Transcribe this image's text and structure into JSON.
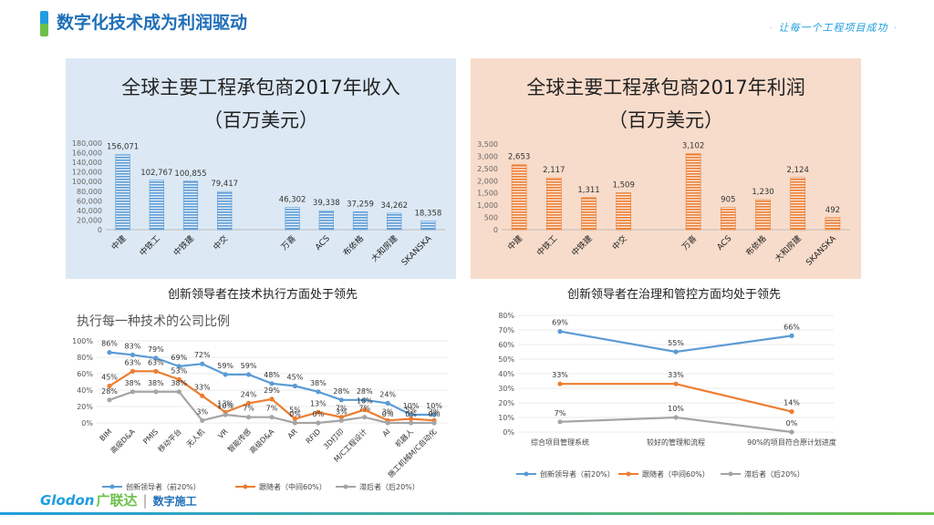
{
  "header": {
    "title": "数字化技术成为利润驱动",
    "slogan": "让每一个工程项目成功",
    "slogan_dot": "·"
  },
  "colors": {
    "blue": "#5b9bd5",
    "orange": "#ed7d31",
    "gray": "#a5a5a5",
    "brand_blue": "#1f9de0",
    "brand_green": "#6cc04a"
  },
  "footer": {
    "logo_text": "Glodon",
    "logo_cn": "广联达",
    "separator": "|",
    "tagline": "数字施工"
  },
  "captions": {
    "left": "创新领导者在技术执行方面处于领先",
    "right": "创新领导者在治理和管控方面均处于领先"
  },
  "chart_data": [
    {
      "id": "revenue",
      "type": "bar",
      "title_line1": "全球主要工程承包商2017年收入",
      "title_line2": "（百万美元）",
      "categories": [
        "中建",
        "中铁工",
        "中铁建",
        "中交",
        "万喜",
        "ACS",
        "布依格",
        "大和房建",
        "SKANSKA"
      ],
      "values": [
        156071,
        102767,
        100855,
        79417,
        46302,
        39338,
        37259,
        34262,
        18358
      ],
      "value_labels": [
        "156,071",
        "102,767",
        "100,855",
        "79,417",
        "46,302",
        "39,338",
        "37,259",
        "34,262",
        "18,358"
      ],
      "ylim": [
        0,
        180000
      ],
      "yticks": [
        "0",
        "20,000",
        "40,000",
        "60,000",
        "80,000",
        "100,000",
        "120,000",
        "140,000",
        "160,000",
        "180,000"
      ],
      "color": "#5b9bd5"
    },
    {
      "id": "profit",
      "type": "bar",
      "title_line1": "全球主要工程承包商2017年利润",
      "title_line2": "（百万美元）",
      "categories": [
        "中建",
        "中铁工",
        "中铁建",
        "中交",
        "万喜",
        "ACS",
        "布依格",
        "大和房建",
        "SKANSKA"
      ],
      "values": [
        2653,
        2117,
        1311,
        1509,
        3102,
        905,
        1230,
        2124,
        492
      ],
      "value_labels": [
        "2,653",
        "2,117",
        "1,311",
        "1,509",
        "3,102",
        "905",
        "1,230",
        "2,124",
        "492"
      ],
      "ylim": [
        0,
        3500
      ],
      "yticks": [
        "0",
        "500",
        "1,000",
        "1,500",
        "2,000",
        "2,500",
        "3,000",
        "3,500"
      ],
      "color": "#ed7d31"
    },
    {
      "id": "tech",
      "type": "line",
      "title": "执行每一种技术的公司比例",
      "categories": [
        "BIM",
        "高级D&A",
        "PMIS",
        "移动平台",
        "无人机",
        "VR",
        "智能传感",
        "高级D&A",
        "AR",
        "RFID",
        "3D打印",
        "M/C工程设计",
        "AI",
        "机器人",
        "施工机械M/C自动化"
      ],
      "ylim": [
        0,
        100
      ],
      "yticks": [
        "0%",
        "20%",
        "40%",
        "60%",
        "80%",
        "100%"
      ],
      "series": [
        {
          "name": "创新领导者（前20%）",
          "color": "#5b9bd5",
          "values": [
            86,
            83,
            79,
            69,
            72,
            59,
            59,
            48,
            45,
            38,
            28,
            28,
            24,
            10,
            10
          ],
          "labels": [
            "86%",
            "83%",
            "79%",
            "69%",
            "72%",
            "59%",
            "59%",
            "48%",
            "45%",
            "38%",
            "28%",
            "28%",
            "24%",
            "10%",
            "10%"
          ]
        },
        {
          "name": "跟随者（中间60%）",
          "color": "#ed7d31",
          "values": [
            45,
            63,
            63,
            53,
            33,
            13,
            24,
            29,
            5,
            13,
            7,
            16,
            3,
            5,
            3
          ],
          "labels": [
            "45%",
            "63%",
            "63%",
            "53%",
            "33%",
            "13%",
            "24%",
            "29%",
            "5%",
            "13%",
            "7%",
            "16%",
            "3%",
            "5%",
            "3%"
          ]
        },
        {
          "name": "滞后者（后20%）",
          "color": "#a5a5a5",
          "values": [
            28,
            38,
            38,
            38,
            3,
            10,
            7,
            7,
            0,
            0,
            3,
            7,
            0,
            0,
            0
          ],
          "labels": [
            "28%",
            "38%",
            "38%",
            "38%",
            "3%",
            "10%",
            "7%",
            "7%",
            "0%",
            "0%",
            "3%",
            "7%",
            "0%",
            "0%",
            "0%"
          ]
        }
      ]
    },
    {
      "id": "governance",
      "type": "line",
      "categories": [
        "综合项目管理系统",
        "较好的管理和流程",
        "90%的项目符合原计划进度"
      ],
      "ylim": [
        0,
        80
      ],
      "yticks": [
        "0%",
        "10%",
        "20%",
        "30%",
        "40%",
        "50%",
        "60%",
        "70%",
        "80%"
      ],
      "series": [
        {
          "name": "创新领导者（前20%）",
          "color": "#5b9bd5",
          "values": [
            69,
            55,
            66
          ],
          "labels": [
            "69%",
            "55%",
            "66%"
          ]
        },
        {
          "name": "跟随者（中间60%）",
          "color": "#ed7d31",
          "values": [
            33,
            33,
            14
          ],
          "labels": [
            "33%",
            "33%",
            "14%"
          ]
        },
        {
          "name": "滞后者（后20%）",
          "color": "#a5a5a5",
          "values": [
            7,
            10,
            0
          ],
          "labels": [
            "7%",
            "10%",
            "0%"
          ]
        }
      ]
    }
  ]
}
